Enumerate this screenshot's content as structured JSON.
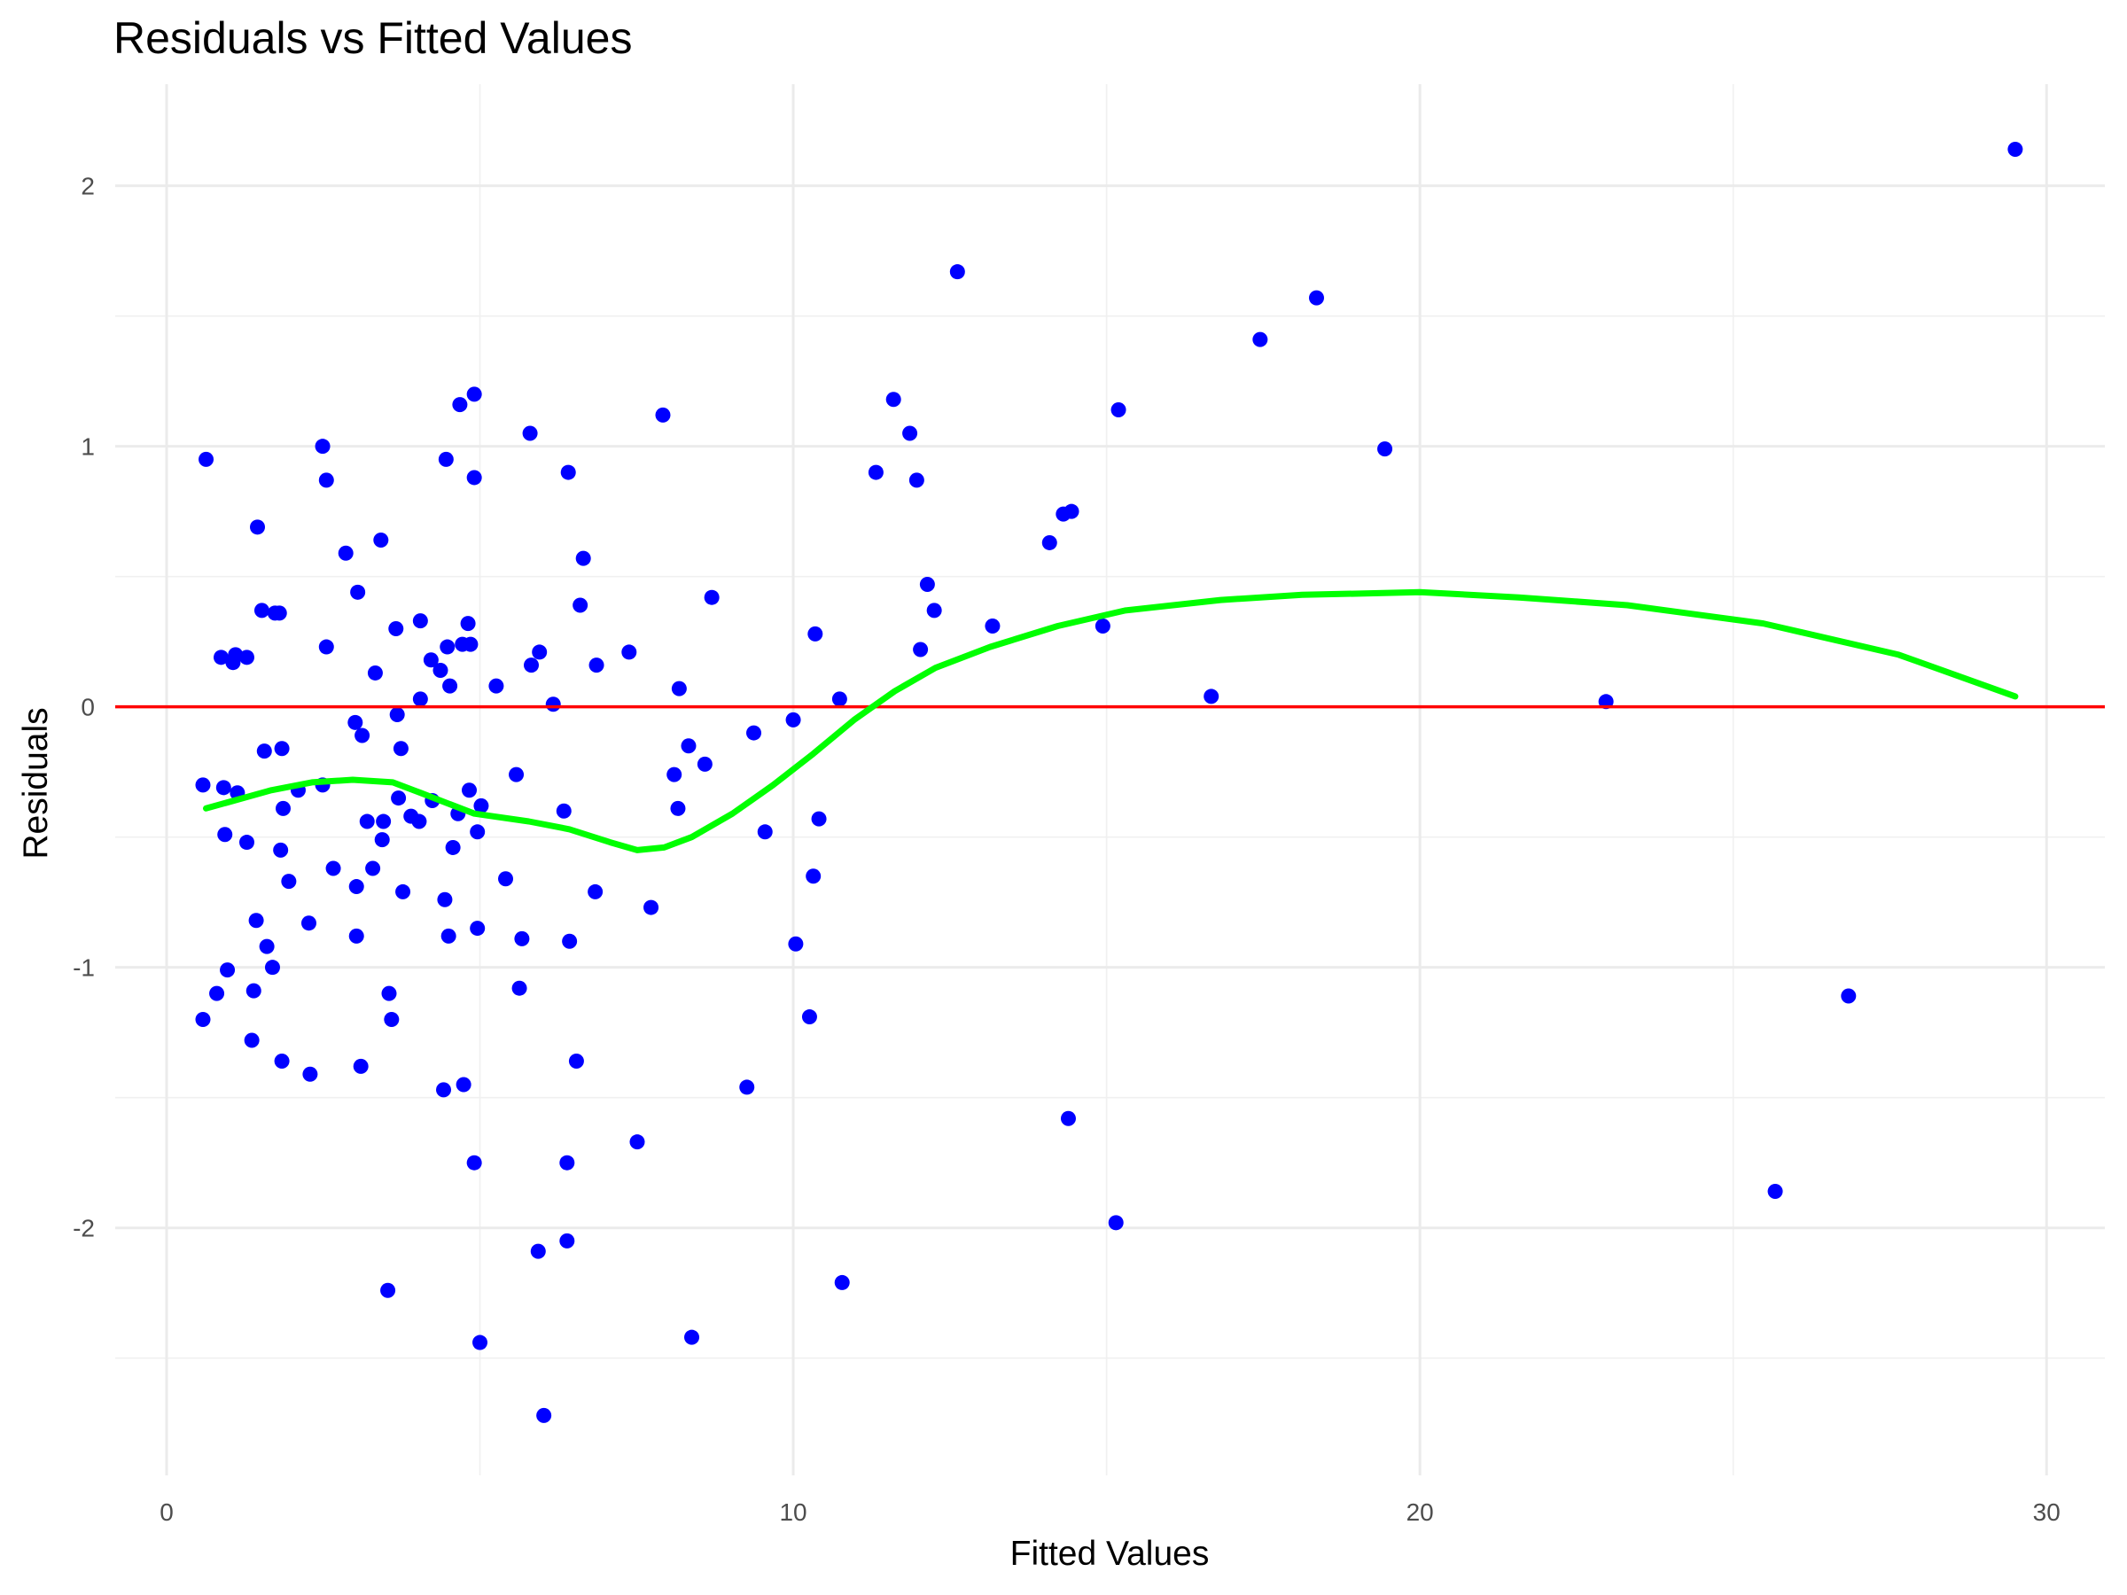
{
  "chart_data": {
    "type": "scatter",
    "title": "Residuals vs Fitted Values",
    "x_label": "Fitted Values",
    "y_label": "Residuals",
    "xlim": [
      -0.82,
      30.93
    ],
    "ylim": [
      -2.95,
      2.39
    ],
    "xticks": [
      0,
      10,
      20,
      30
    ],
    "yticks": [
      -2,
      -1,
      0,
      1,
      2
    ],
    "x_minor_ticks": [
      5,
      15,
      25
    ],
    "y_minor_ticks": [
      -2.5,
      -1.5,
      -0.5,
      0.5,
      1.5
    ],
    "grid": true,
    "points": {
      "color": "#0000ff",
      "x": [
        0.63,
        0.58,
        0.58,
        0.8,
        0.87,
        0.91,
        0.93,
        0.97,
        1.06,
        1.1,
        1.13,
        1.28,
        1.28,
        1.36,
        1.39,
        1.43,
        1.45,
        1.52,
        1.56,
        1.6,
        1.69,
        1.73,
        1.8,
        1.82,
        1.84,
        1.86,
        1.84,
        1.95,
        2.1,
        2.27,
        2.29,
        2.49,
        2.49,
        2.55,
        2.55,
        2.66,
        2.86,
        3.01,
        3.03,
        3.03,
        3.05,
        3.1,
        3.12,
        3.2,
        3.29,
        3.33,
        3.42,
        3.44,
        3.46,
        3.53,
        3.55,
        3.59,
        3.66,
        3.68,
        3.7,
        3.74,
        3.77,
        3.9,
        4.03,
        4.05,
        4.05,
        4.22,
        4.24,
        4.37,
        4.42,
        4.44,
        4.48,
        4.46,
        4.5,
        4.52,
        4.57,
        4.65,
        4.68,
        4.72,
        4.74,
        4.81,
        4.83,
        4.85,
        4.91,
        4.91,
        4.91,
        4.96,
        4.96,
        5.0,
        5.02,
        5.26,
        5.41,
        5.58,
        5.63,
        5.67,
        5.8,
        5.82,
        5.93,
        5.95,
        6.02,
        6.17,
        6.34,
        6.39,
        6.39,
        6.41,
        6.43,
        6.54,
        6.6,
        6.65,
        6.84,
        6.86,
        7.38,
        7.51,
        7.73,
        7.92,
        8.1,
        8.16,
        8.18,
        8.33,
        8.38,
        8.59,
        8.7,
        9.26,
        9.37,
        9.55,
        10.0,
        10.04,
        10.26,
        10.32,
        10.35,
        10.41,
        10.74,
        10.78,
        11.32,
        11.6,
        11.86,
        11.97,
        12.03,
        12.14,
        12.25,
        12.62,
        13.18,
        14.09,
        14.31,
        14.39,
        14.44,
        14.94,
        15.15,
        15.19,
        16.67,
        17.45,
        18.35,
        19.44,
        22.97,
        25.67,
        26.84,
        29.5
      ],
      "y": [
        0.95,
        -0.3,
        -1.2,
        -1.1,
        0.19,
        -0.31,
        -0.49,
        -1.01,
        0.17,
        0.2,
        -0.33,
        -0.52,
        0.19,
        -1.28,
        -1.09,
        -0.82,
        0.69,
        0.37,
        -0.17,
        -0.92,
        -1.0,
        0.36,
        0.36,
        -0.55,
        -0.16,
        -0.39,
        -1.36,
        -0.67,
        -0.32,
        -0.83,
        -1.41,
        1.0,
        -0.3,
        0.87,
        0.23,
        -0.62,
        0.59,
        -0.06,
        -0.88,
        -0.69,
        0.44,
        -1.38,
        -0.11,
        -0.44,
        -0.62,
        0.13,
        0.64,
        -0.51,
        -0.44,
        -2.24,
        -1.1,
        -1.2,
        0.3,
        -0.03,
        -0.35,
        -0.16,
        -0.71,
        -0.42,
        -0.44,
        0.03,
        0.33,
        0.18,
        -0.36,
        0.14,
        -1.47,
        -0.74,
        0.23,
        0.95,
        -0.88,
        0.08,
        -0.54,
        -0.41,
        1.16,
        0.24,
        -1.45,
        0.32,
        -0.32,
        0.24,
        1.2,
        0.88,
        -1.75,
        -0.48,
        -0.85,
        -2.44,
        -0.38,
        0.08,
        -0.66,
        -0.26,
        -1.08,
        -0.89,
        1.05,
        0.16,
        -2.09,
        0.21,
        -2.72,
        0.01,
        -0.4,
        -1.75,
        -2.05,
        0.9,
        -0.9,
        -1.36,
        0.39,
        0.57,
        -0.71,
        0.16,
        0.21,
        -1.67,
        -0.77,
        1.12,
        -0.26,
        -0.39,
        0.07,
        -0.15,
        -2.42,
        -0.22,
        0.42,
        -1.46,
        -0.1,
        -0.48,
        -0.05,
        -0.91,
        -1.19,
        -0.65,
        0.28,
        -0.43,
        0.03,
        -2.21,
        0.9,
        1.18,
        1.05,
        0.87,
        0.22,
        0.47,
        0.37,
        1.67,
        0.31,
        0.63,
        0.74,
        -1.58,
        0.75,
        0.31,
        -1.98,
        1.14,
        0.04,
        1.41,
        1.57,
        0.99,
        0.02,
        -1.86,
        -1.11,
        2.14
      ]
    },
    "smooth": {
      "color": "#00ff00",
      "x": [
        0.63,
        1.67,
        2.32,
        2.97,
        3.61,
        4.05,
        4.91,
        5.78,
        6.43,
        7.08,
        7.51,
        7.94,
        8.38,
        9.03,
        9.68,
        10.32,
        10.97,
        11.62,
        12.27,
        13.14,
        14.22,
        15.3,
        16.82,
        18.12,
        20.0,
        21.58,
        23.31,
        25.48,
        27.64,
        29.5
      ],
      "y": [
        -0.39,
        -0.32,
        -0.29,
        -0.28,
        -0.29,
        -0.33,
        -0.41,
        -0.44,
        -0.47,
        -0.52,
        -0.55,
        -0.54,
        -0.5,
        -0.41,
        -0.3,
        -0.18,
        -0.05,
        0.06,
        0.15,
        0.23,
        0.31,
        0.37,
        0.41,
        0.43,
        0.44,
        0.42,
        0.39,
        0.32,
        0.2,
        0.04
      ]
    },
    "reference_line": {
      "y": 0,
      "color": "#ff0000"
    }
  }
}
